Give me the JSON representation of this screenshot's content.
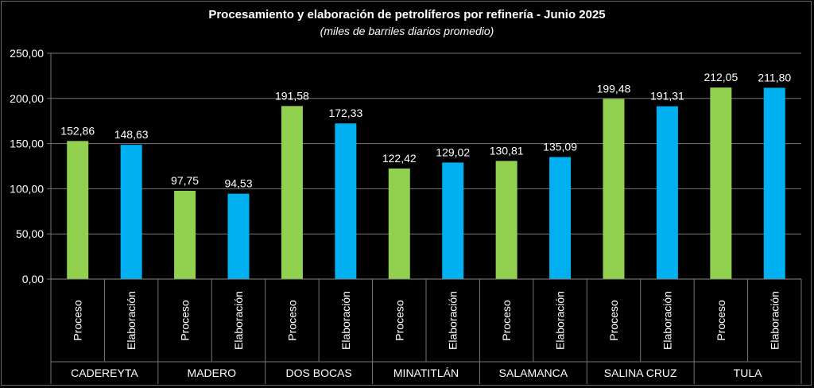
{
  "chart_data": {
    "type": "bar",
    "title": "Procesamiento y elaboración de petrolíferos por refinería - Junio 2025",
    "subtitle": "(miles de barriles diarios promedio)",
    "groups": [
      "CADEREYTA",
      "MADERO",
      "DOS BOCAS",
      "MINATITLÁN",
      "SALAMANCA",
      "SALINA CRUZ",
      "TULA"
    ],
    "subcategories": [
      "Proceso",
      "Elaboración"
    ],
    "series": [
      {
        "name": "Proceso",
        "color": "#92d050",
        "values": [
          152.86,
          97.75,
          191.58,
          122.42,
          130.81,
          199.48,
          212.05
        ]
      },
      {
        "name": "Elaboración",
        "color": "#00b0f0",
        "values": [
          148.63,
          94.53,
          172.33,
          129.02,
          135.09,
          191.31,
          211.8
        ]
      }
    ],
    "data_labels": {
      "Proceso": [
        "152,86",
        "97,75",
        "191,58",
        "122,42",
        "130,81",
        "199,48",
        "212,05"
      ],
      "Elaboración": [
        "148,63",
        "94,53",
        "172,33",
        "129,02",
        "135,09",
        "191,31",
        "211,80"
      ]
    },
    "ylim": [
      0,
      250
    ],
    "yticks": [
      0,
      50,
      100,
      150,
      200,
      250
    ],
    "ytick_labels": [
      "0,00",
      "50,00",
      "100,00",
      "150,00",
      "200,00",
      "250,00"
    ],
    "grid": true,
    "legend": "none"
  }
}
